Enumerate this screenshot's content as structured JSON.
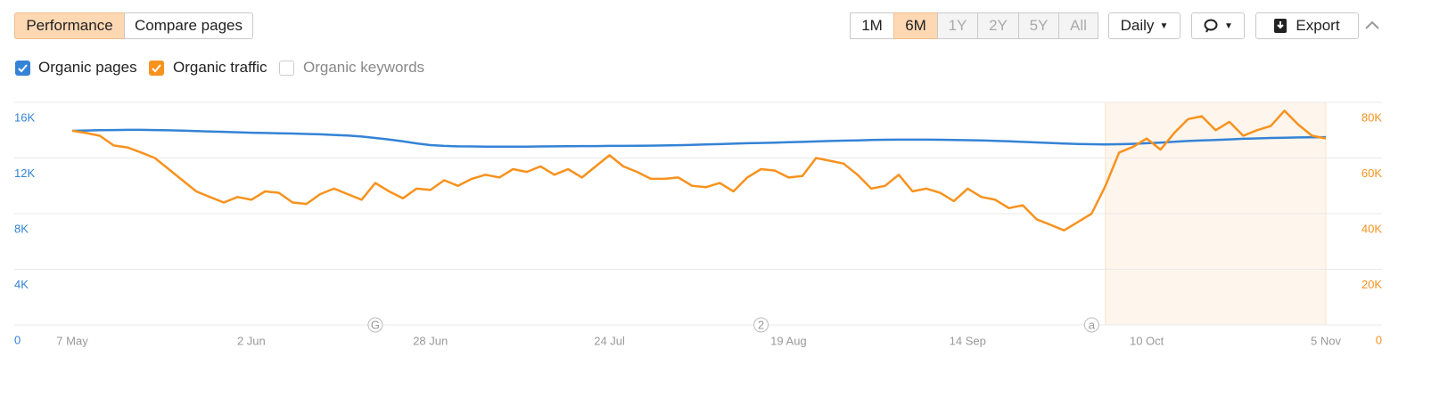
{
  "toolbar": {
    "tabs": [
      {
        "label": "Performance",
        "active": true
      },
      {
        "label": "Compare pages",
        "active": false
      }
    ],
    "ranges": [
      {
        "label": "1M",
        "state": "normal"
      },
      {
        "label": "6M",
        "state": "active"
      },
      {
        "label": "1Y",
        "state": "disabled"
      },
      {
        "label": "2Y",
        "state": "disabled"
      },
      {
        "label": "5Y",
        "state": "disabled"
      },
      {
        "label": "All",
        "state": "disabled"
      }
    ],
    "interval": "Daily",
    "export": "Export"
  },
  "unchecked_series": "Organic keywords",
  "chart_data": {
    "type": "line",
    "grid": true,
    "categories": [
      "7 May",
      null,
      null,
      null,
      null,
      null,
      null,
      null,
      null,
      null,
      null,
      null,
      null,
      "2 Jun",
      null,
      null,
      null,
      null,
      null,
      null,
      null,
      null,
      null,
      null,
      null,
      null,
      "28 Jun",
      null,
      null,
      null,
      null,
      null,
      null,
      null,
      null,
      null,
      null,
      null,
      null,
      "24 Jul",
      null,
      null,
      null,
      null,
      null,
      null,
      null,
      null,
      null,
      null,
      null,
      null,
      "19 Aug",
      null,
      null,
      null,
      null,
      null,
      null,
      null,
      null,
      null,
      null,
      null,
      null,
      "14 Sep",
      null,
      null,
      null,
      null,
      null,
      null,
      null,
      null,
      null,
      null,
      null,
      null,
      "10 Oct",
      null,
      null,
      null,
      null,
      null,
      null,
      null,
      null,
      null,
      null,
      null,
      null,
      "5 Nov"
    ],
    "ylim": [
      0,
      16000
    ],
    "yticks": [
      0,
      {
        "value": 4000,
        "label": "4K"
      },
      {
        "value": 8000,
        "label": "8K"
      },
      {
        "value": 12000,
        "label": "12K"
      },
      {
        "value": 16000,
        "label": "16K"
      }
    ],
    "y2lim": [
      0,
      80000
    ],
    "y2ticks": [
      0,
      {
        "value": 20000,
        "label": "20K"
      },
      {
        "value": 40000,
        "label": "40K"
      },
      {
        "value": 60000,
        "label": "60K"
      },
      {
        "value": 80000,
        "label": "80K"
      }
    ],
    "series": [
      {
        "name": "Organic pages",
        "color": "#3483d6",
        "values": [
          13950,
          13980,
          14000,
          14010,
          14020,
          14020,
          14010,
          13990,
          13970,
          13940,
          13910,
          13880,
          13850,
          13820,
          13800,
          13780,
          13760,
          13730,
          13700,
          13660,
          13610,
          13540,
          13440,
          13330,
          13200,
          13050,
          12930,
          12870,
          12840,
          12830,
          12820,
          12820,
          12810,
          12820,
          12830,
          12840,
          12850,
          12860,
          12860,
          12870,
          12870,
          12880,
          12890,
          12900,
          12920,
          12940,
          12970,
          13000,
          13030,
          13060,
          13080,
          13100,
          13130,
          13160,
          13190,
          13220,
          13250,
          13270,
          13290,
          13310,
          13320,
          13320,
          13320,
          13310,
          13300,
          13280,
          13260,
          13230,
          13200,
          13160,
          13120,
          13080,
          13040,
          13010,
          12990,
          12980,
          12990,
          13020,
          13060,
          13110,
          13170,
          13220,
          13260,
          13300,
          13340,
          13380,
          13410,
          13440,
          13460,
          13480,
          13490,
          13500
        ]
      },
      {
        "name": "Organic traffic",
        "color": "#f7921e",
        "axis": "y2",
        "values": [
          69800,
          69000,
          68000,
          64500,
          63800,
          62000,
          60000,
          56000,
          52000,
          48000,
          46000,
          44000,
          46000,
          45000,
          48000,
          47500,
          44000,
          43500,
          47000,
          49000,
          47000,
          45000,
          51000,
          48000,
          45500,
          49000,
          48500,
          52000,
          50000,
          52500,
          54000,
          53000,
          56000,
          55000,
          57000,
          54000,
          56000,
          53000,
          57000,
          61000,
          57000,
          55000,
          52500,
          52500,
          53000,
          50000,
          49500,
          51000,
          48000,
          53000,
          56000,
          55500,
          53000,
          53500,
          60000,
          59000,
          58000,
          54000,
          49000,
          50000,
          54000,
          48000,
          49000,
          47500,
          44500,
          49000,
          46000,
          45000,
          42000,
          43000,
          38000,
          36000,
          34000,
          37000,
          40000,
          50000,
          62000,
          64000,
          67000,
          63000,
          69000,
          74000,
          75000,
          70000,
          73000,
          68000,
          70000,
          71500,
          77000,
          72000,
          68000,
          67000
        ]
      }
    ],
    "highlight": {
      "from": 75,
      "to": 91
    },
    "annotations": [
      {
        "at": 22,
        "label": "G"
      },
      {
        "at": 50,
        "label": "2"
      },
      {
        "at": 74,
        "label": "a"
      }
    ]
  }
}
